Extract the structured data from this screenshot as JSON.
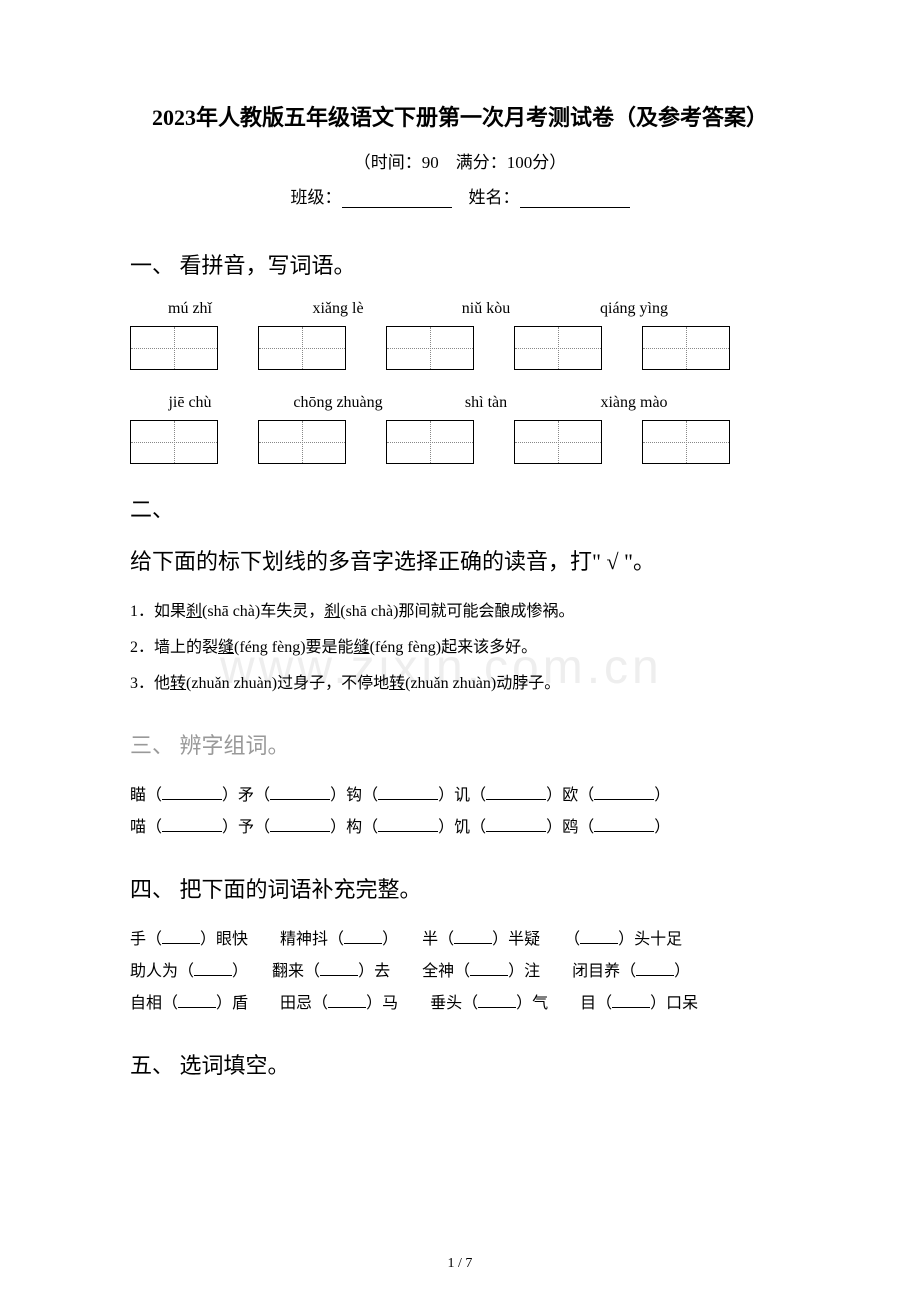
{
  "title": "2023年人教版五年级语文下册第一次月考测试卷（及参考答案）",
  "subtitle": "（时间：90　满分：100分）",
  "fill_labels": {
    "class": "班级：",
    "name": "姓名："
  },
  "sections": {
    "s1": {
      "header": "一、 看拼音，写词语。",
      "row1_pinyin": [
        "mú zhǐ",
        "xiǎng lè",
        "niǔ kòu",
        "qiáng yìng"
      ],
      "row2_pinyin": [
        "jiē chù",
        "chōng zhuàng",
        "shì tàn",
        "xiàng mào"
      ],
      "box_count_per_row": 5
    },
    "s2": {
      "header_num": "二、",
      "header_text": "给下面的标下划线的多音字选择正确的读音，打\" √ \"。",
      "q1": "1．如果",
      "q1_u": "刹",
      "q1_mid": "(shā chà)车失灵，",
      "q1_u2": "刹",
      "q1_end": "(shā chà)那间就可能会酿成惨祸。",
      "q2": "2．墙上的裂",
      "q2_u": "缝",
      "q2_mid": "(féng fèng)要是能",
      "q2_u2": "缝",
      "q2_end": "(féng fèng)起来该多好。",
      "q3": "3．他",
      "q3_u": "转",
      "q3_mid": "(zhuǎn zhuàn)过身子，不停地",
      "q3_u2": "转",
      "q3_end": "(zhuǎn zhuàn)动脖子。"
    },
    "s3": {
      "header": "三、 辨字组词。",
      "line1_chars": [
        "瞄",
        "矛",
        "钩",
        "讥",
        "欧"
      ],
      "line2_chars": [
        "喵",
        "予",
        "构",
        "饥",
        "鸥"
      ]
    },
    "s4": {
      "header": "四、 把下面的词语补充完整。",
      "line1": [
        "手（",
        "）眼快",
        "精神抖（",
        "）",
        "半（",
        "）半疑",
        "（",
        "）头十足"
      ],
      "line2": [
        "助人为（",
        "）",
        "翻来（",
        "）去",
        "全神（",
        "）注",
        "闭目养（",
        "）"
      ],
      "line3": [
        "自相（",
        "）盾",
        "田忌（",
        "）马",
        "垂头（",
        "）气",
        "目（",
        "）口呆"
      ]
    },
    "s5": {
      "header": "五、 选词填空。"
    }
  },
  "page_num": "1 / 7",
  "watermark": "www.zixin.com.cn",
  "colors": {
    "text": "#000000",
    "gray": "#999999",
    "bg": "#ffffff",
    "dotted": "#888888",
    "watermark": "#eeeeee"
  }
}
